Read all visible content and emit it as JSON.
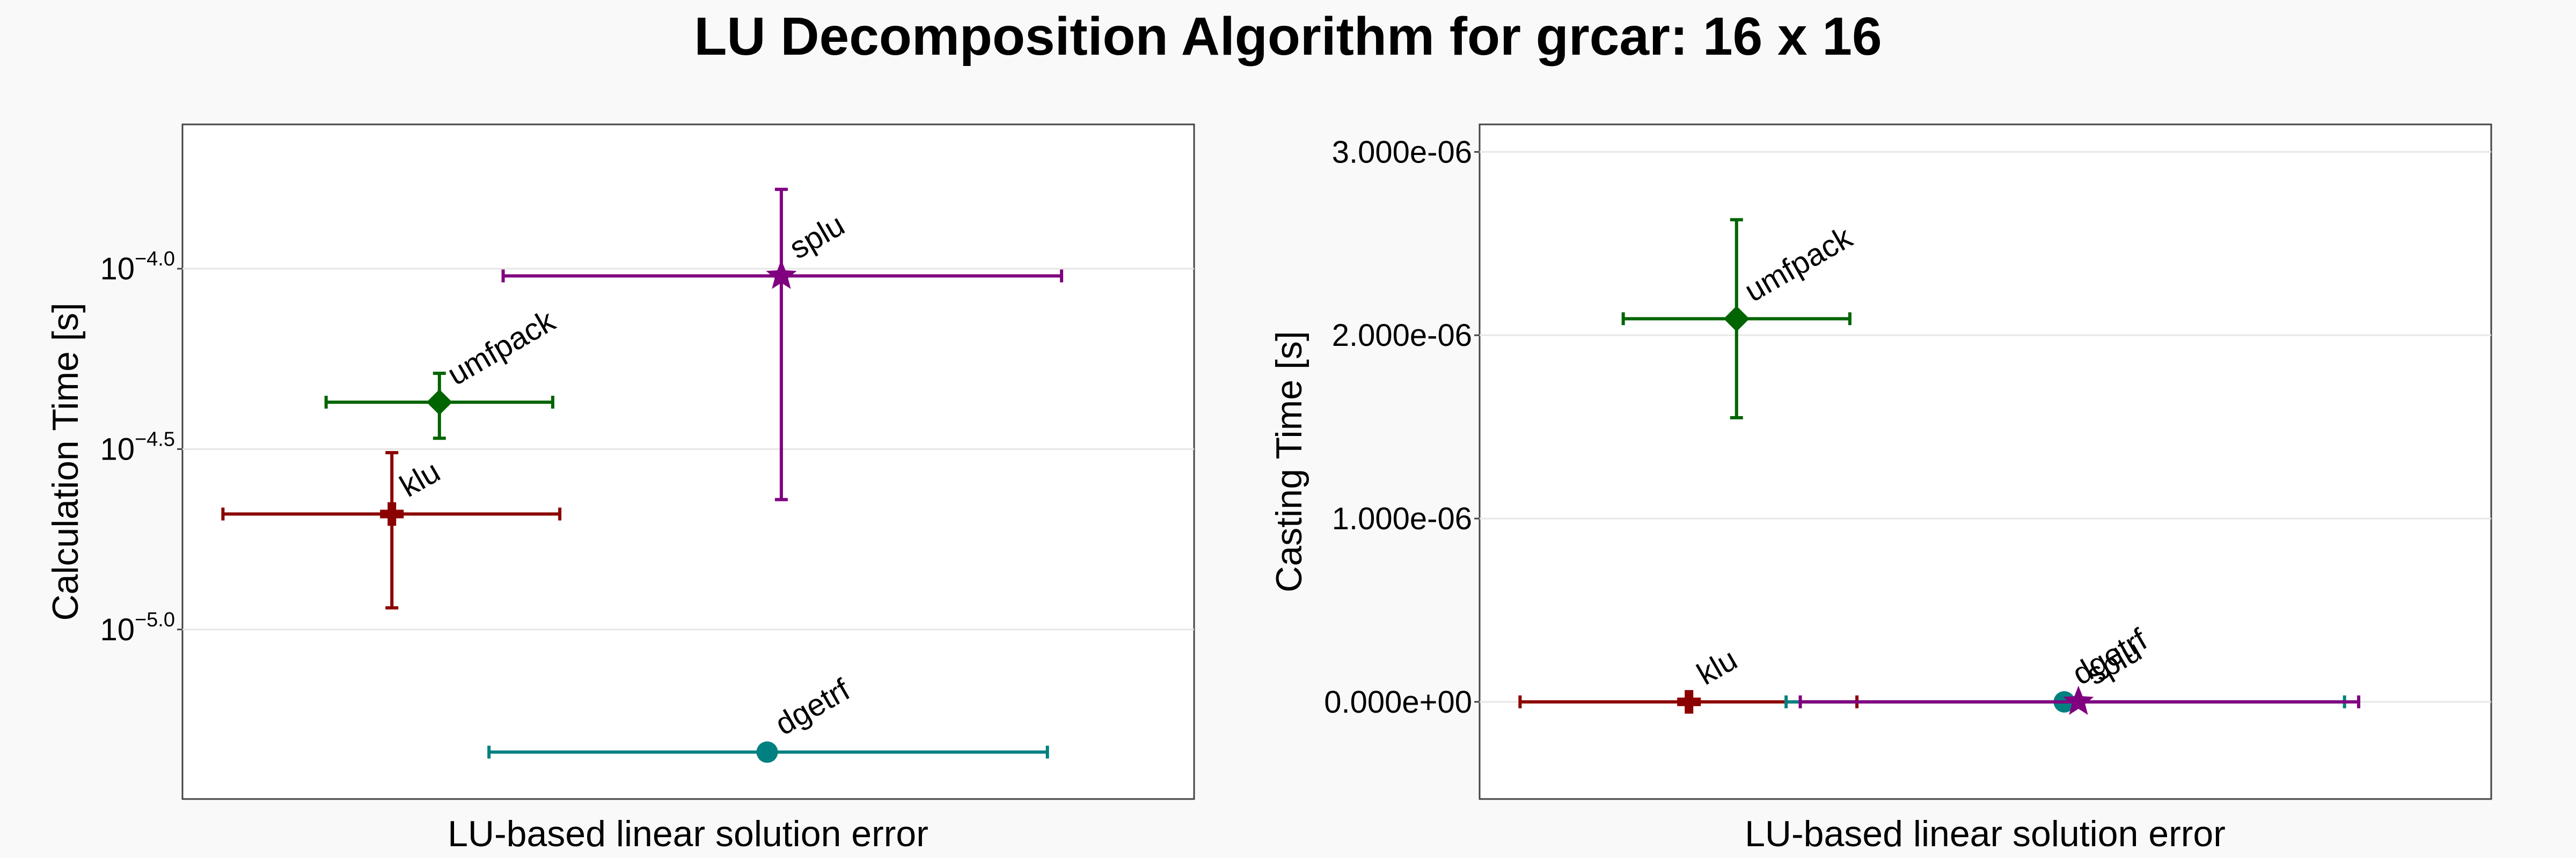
{
  "title": "LU Decomposition Algorithm for grcar: 16 x 16",
  "chart_data": [
    {
      "type": "scatter",
      "xlabel": "LU-based linear solution error",
      "ylabel": "Calculation Time [s]",
      "yscale": "log",
      "ylim_log10": [
        -5.47,
        -3.6
      ],
      "yticks": [
        {
          "value": -4.0,
          "base": "10",
          "exp": "−4.0"
        },
        {
          "value": -4.5,
          "base": "10",
          "exp": "−4.5"
        },
        {
          "value": -5.0,
          "base": "10",
          "exp": "−5.0"
        }
      ],
      "grid": true,
      "series": [
        {
          "name": "klu",
          "color": "#8b0000",
          "marker": "plus",
          "x_rel": 0.207,
          "x_err": [
            0.04,
            0.373
          ],
          "y_log10": -4.68,
          "y_err_log10": [
            -4.94,
            -4.51
          ]
        },
        {
          "name": "umfpack",
          "color": "#006400",
          "marker": "diamond",
          "x_rel": 0.254,
          "x_err": [
            0.142,
            0.366
          ],
          "y_log10": -4.37,
          "y_err_log10": [
            -4.47,
            -4.29
          ]
        },
        {
          "name": "splu",
          "color": "#800080",
          "marker": "star",
          "x_rel": 0.592,
          "x_err": [
            0.317,
            0.869
          ],
          "y_log10": -4.02,
          "y_err_log10": [
            -4.64,
            -3.78
          ]
        },
        {
          "name": "dgetrf",
          "color": "#008080",
          "marker": "circle",
          "x_rel": 0.578,
          "x_err": [
            0.303,
            0.855
          ],
          "y_log10": -5.34,
          "y_err_log10": [
            -5.34,
            -5.34
          ]
        }
      ]
    },
    {
      "type": "scatter",
      "xlabel": "LU-based linear solution error",
      "ylabel": "Casting Time [s]",
      "ylim": [
        -5.3e-07,
        3.15e-06
      ],
      "yticks": [
        {
          "value": 0.0,
          "label": "0.000e+00"
        },
        {
          "value": 1e-06,
          "label": "1.000e-06"
        },
        {
          "value": 2e-06,
          "label": "2.000e-06"
        },
        {
          "value": 3e-06,
          "label": "3.000e-06"
        }
      ],
      "grid": true,
      "series": [
        {
          "name": "umfpack",
          "color": "#006400",
          "marker": "diamond",
          "x_rel": 0.254,
          "x_err": [
            0.142,
            0.366
          ],
          "y": 2.09e-06,
          "y_err": [
            1.55e-06,
            2.63e-06
          ]
        },
        {
          "name": "klu",
          "color": "#8b0000",
          "marker": "plus",
          "x_rel": 0.207,
          "x_err": [
            0.04,
            0.373
          ],
          "y": 0.0,
          "y_err": [
            0.0,
            0.0
          ]
        },
        {
          "name": "dgetrf",
          "color": "#008080",
          "marker": "circle",
          "x_rel": 0.578,
          "x_err": [
            0.303,
            0.855
          ],
          "y": 0.0,
          "y_err": [
            0.0,
            0.0
          ]
        },
        {
          "name": "splu",
          "color": "#800080",
          "marker": "star",
          "x_rel": 0.592,
          "x_err": [
            0.317,
            0.869
          ],
          "y": 0.0,
          "y_err": [
            0.0,
            0.0
          ]
        }
      ]
    }
  ]
}
